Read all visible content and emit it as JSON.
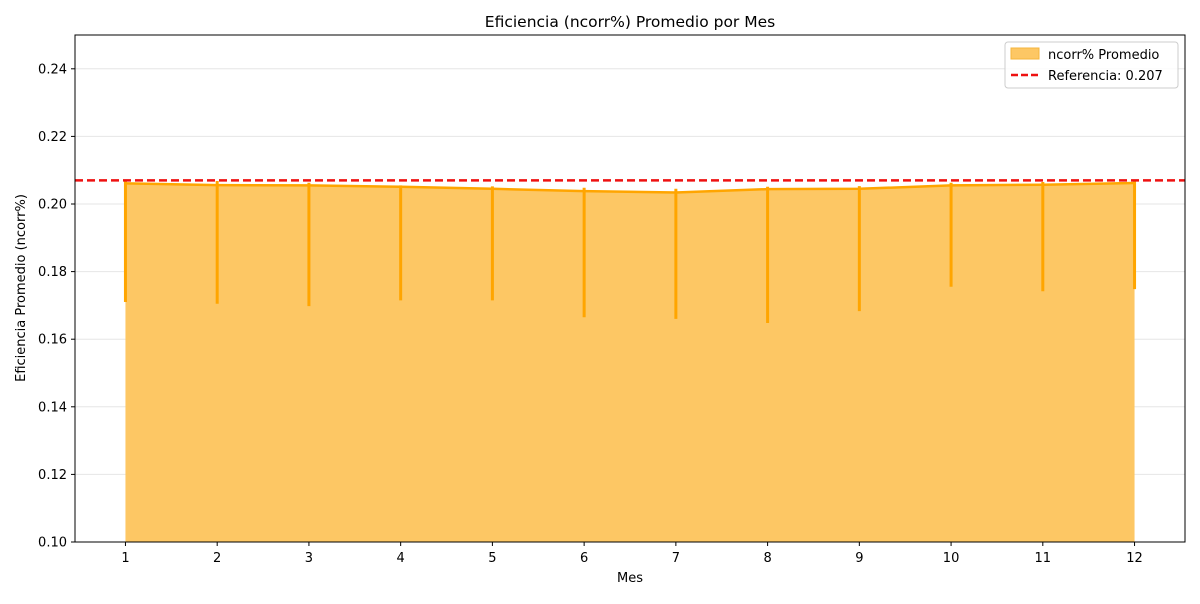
{
  "chart_data": {
    "type": "area",
    "title": "Eficiencia (ncorr%) Promedio por Mes",
    "xlabel": "Mes",
    "ylabel": "Eficiencia Promedio (ncorr%)",
    "x": [
      1,
      2,
      3,
      4,
      5,
      6,
      7,
      8,
      9,
      10,
      11,
      12
    ],
    "xticks": [
      "1",
      "2",
      "3",
      "4",
      "5",
      "6",
      "7",
      "8",
      "9",
      "10",
      "11",
      "12"
    ],
    "xlim": [
      0.45,
      12.55
    ],
    "ylim": [
      0.1,
      0.25
    ],
    "yticks": [
      0.1,
      0.12,
      0.14,
      0.16,
      0.18,
      0.2,
      0.22,
      0.24
    ],
    "ytick_labels": [
      "0.10",
      "0.12",
      "0.14",
      "0.16",
      "0.18",
      "0.20",
      "0.22",
      "0.24"
    ],
    "series": [
      {
        "name": "ncorr% Promedio",
        "values": [
          0.2061,
          0.2056,
          0.2055,
          0.2051,
          0.2045,
          0.2038,
          0.2034,
          0.2044,
          0.2045,
          0.2055,
          0.2057,
          0.2062
        ],
        "error_low": [
          0.171,
          0.1705,
          0.1698,
          0.1715,
          0.1715,
          0.1665,
          0.166,
          0.1648,
          0.1683,
          0.1755,
          0.1742,
          0.1748
        ],
        "error_high": [
          0.2072,
          0.2068,
          0.2063,
          0.2055,
          0.2052,
          0.2048,
          0.2045,
          0.2051,
          0.2053,
          0.2063,
          0.2065,
          0.2068
        ],
        "fill_color": "#fdc764",
        "line_color": "#ffa500"
      }
    ],
    "reference_line": {
      "label": "Referencia: 0.207",
      "value": 0.207,
      "color": "#ee1111",
      "style": "dashed"
    },
    "legend": {
      "position": "top-right",
      "entries": [
        "ncorr% Promedio",
        "Referencia: 0.207"
      ]
    },
    "grid": {
      "y": true,
      "x": false
    }
  }
}
